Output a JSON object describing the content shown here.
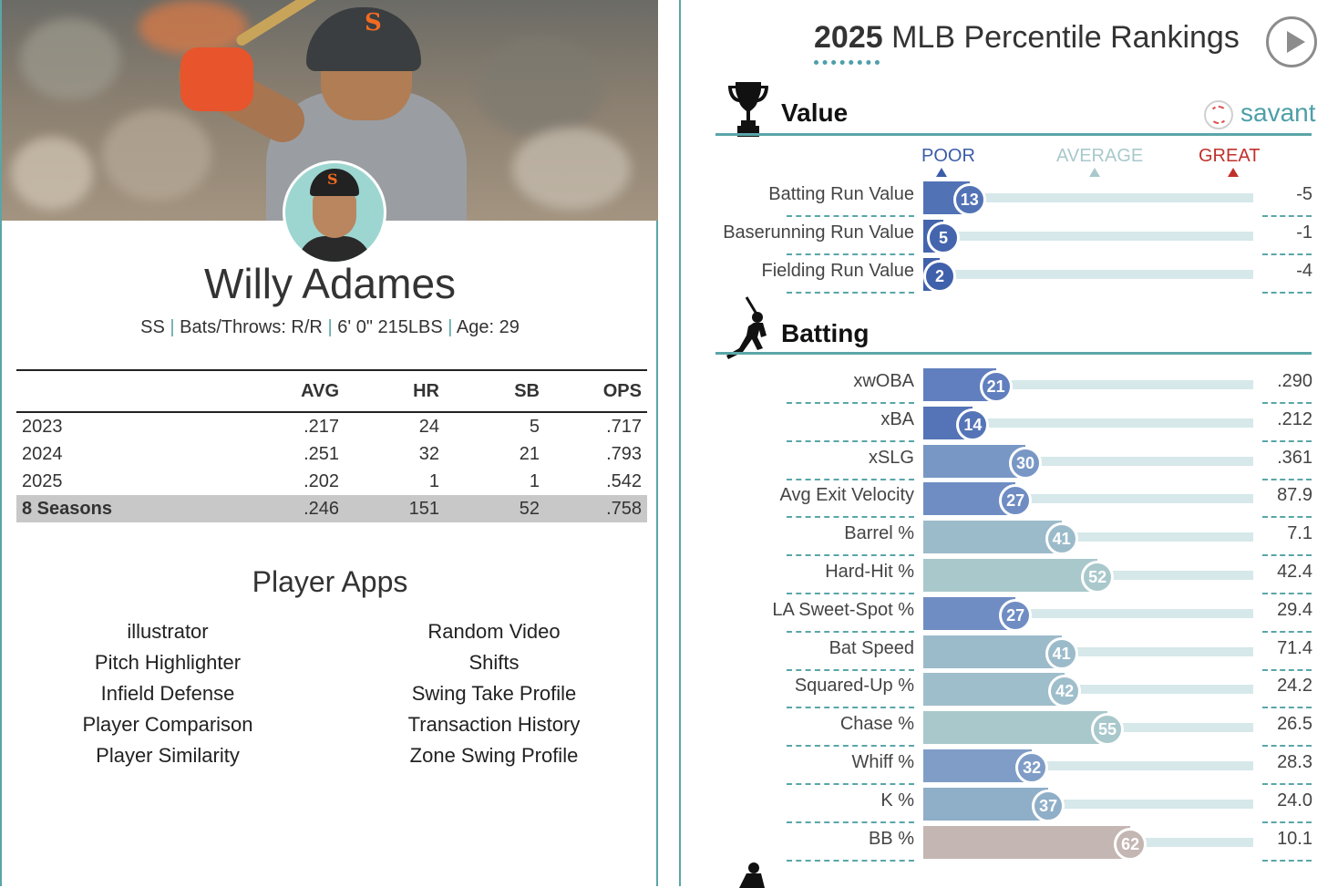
{
  "player": {
    "name": "Willy Adames",
    "position": "SS",
    "bats_throws": "Bats/Throws: R/R",
    "height_weight": "6' 0\" 215LBS",
    "age": "Age: 29"
  },
  "stats_table": {
    "columns": [
      "",
      "AVG",
      "HR",
      "SB",
      "OPS"
    ],
    "rows": [
      {
        "season": "2023",
        "avg": ".217",
        "hr": "24",
        "sb": "5",
        "ops": ".717"
      },
      {
        "season": "2024",
        "avg": ".251",
        "hr": "32",
        "sb": "21",
        "ops": ".793"
      },
      {
        "season": "2025",
        "avg": ".202",
        "hr": "1",
        "sb": "1",
        "ops": ".542"
      }
    ],
    "total": {
      "season": "8 Seasons",
      "avg": ".246",
      "hr": "151",
      "sb": "52",
      "ops": ".758"
    }
  },
  "apps": {
    "title": "Player Apps",
    "left": [
      "illustrator",
      "Pitch Highlighter",
      "Infield Defense",
      "Player Comparison",
      "Player Similarity"
    ],
    "right": [
      "Random Video",
      "Shifts",
      "Swing Take Profile",
      "Transaction History",
      "Zone Swing Profile"
    ]
  },
  "percentiles": {
    "title_year": "2025",
    "title_rest": "MLB Percentile Rankings",
    "brand": "savant",
    "scale": {
      "poor": "POOR",
      "average": "AVERAGE",
      "great": "GREAT"
    },
    "colors": {
      "poor": "#3b5da8",
      "average": "#a9c8cc",
      "great": "#c0312b",
      "accent": "#5aa6a8"
    },
    "sections": [
      {
        "name": "Value",
        "icon": "trophy-icon",
        "metrics": [
          {
            "label": "Batting Run Value",
            "pct": 13,
            "value": "-5"
          },
          {
            "label": "Baserunning Run Value",
            "pct": 5,
            "value": "-1"
          },
          {
            "label": "Fielding Run Value",
            "pct": 2,
            "value": "-4"
          }
        ]
      },
      {
        "name": "Batting",
        "icon": "batter-icon",
        "metrics": [
          {
            "label": "xwOBA",
            "pct": 21,
            "value": ".290"
          },
          {
            "label": "xBA",
            "pct": 14,
            "value": ".212"
          },
          {
            "label": "xSLG",
            "pct": 30,
            "value": ".361"
          },
          {
            "label": "Avg Exit Velocity",
            "pct": 27,
            "value": "87.9"
          },
          {
            "label": "Barrel %",
            "pct": 41,
            "value": "7.1"
          },
          {
            "label": "Hard-Hit %",
            "pct": 52,
            "value": "42.4"
          },
          {
            "label": "LA Sweet-Spot %",
            "pct": 27,
            "value": "29.4"
          },
          {
            "label": "Bat Speed",
            "pct": 41,
            "value": "71.4"
          },
          {
            "label": "Squared-Up %",
            "pct": 42,
            "value": "24.2"
          },
          {
            "label": "Chase %",
            "pct": 55,
            "value": "26.5"
          },
          {
            "label": "Whiff %",
            "pct": 32,
            "value": "28.3"
          },
          {
            "label": "K %",
            "pct": 37,
            "value": "24.0"
          },
          {
            "label": "BB %",
            "pct": 62,
            "value": "10.1"
          }
        ]
      }
    ]
  }
}
